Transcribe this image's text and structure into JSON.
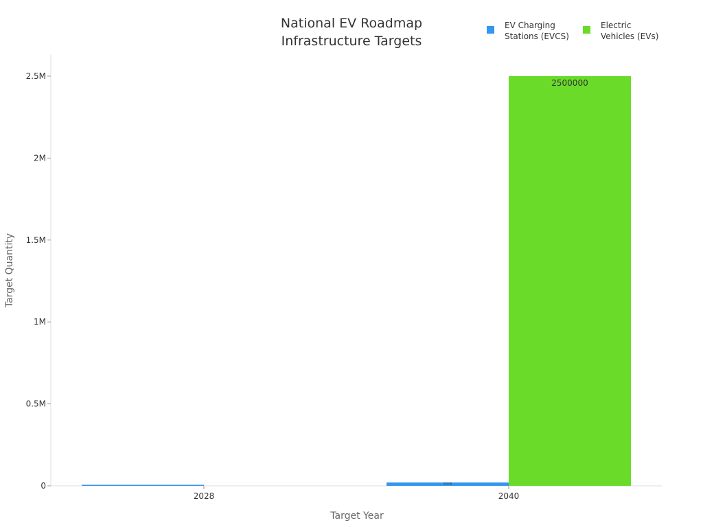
{
  "chart_data": {
    "type": "bar",
    "title": [
      "National EV Roadmap",
      "Infrastructure Targets"
    ],
    "xlabel": "Target Year",
    "ylabel": "Target Quantity",
    "categories": [
      "2028",
      "2040"
    ],
    "series": [
      {
        "name": "EV Charging Stations (EVCS)",
        "legend_lines": [
          "EV Charging",
          "Stations (EVCS)"
        ],
        "color": "#3396f0",
        "values": [
          2000,
          20100
        ],
        "labels": [
          "",
          "20100"
        ]
      },
      {
        "name": "Electric Vehicles (EVs)",
        "legend_lines": [
          "Electric",
          "Vehicles (EVs)"
        ],
        "color": "#69db28",
        "values": [
          null,
          2500000
        ],
        "labels": [
          "",
          "2500000"
        ]
      }
    ],
    "ylim": [
      0,
      2500000
    ],
    "yticks": [
      0,
      500000,
      1000000,
      1500000,
      2000000,
      2500000
    ],
    "ytick_labels": [
      "0",
      "0.5M",
      "1M",
      "1.5M",
      "2M",
      "2.5M"
    ],
    "grid": false,
    "legend": "top-right"
  }
}
